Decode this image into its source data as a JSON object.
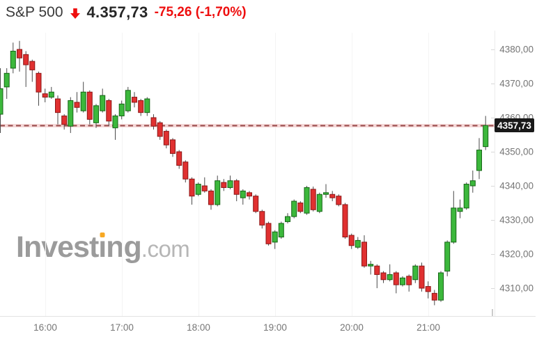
{
  "header": {
    "symbol": "S&P 500",
    "price": "4.357,73",
    "change": "-75,26 (-1,70%)",
    "direction_icon": "down-arrow",
    "change_color": "#ee0e0e"
  },
  "watermark": {
    "brand_main": "Invest",
    "brand_i": "ı",
    "brand_tail": "ng",
    "suffix": ".com"
  },
  "chart_data": {
    "type": "candlestick",
    "title": "S&P 500 intraday candlestick chart",
    "candle_interval_minutes": 5,
    "x_tick_labels": [
      "16:00",
      "17:00",
      "18:00",
      "19:00",
      "20:00",
      "21:00"
    ],
    "y_tick_labels": [
      "4380,00",
      "4370,00",
      "4360,00",
      "4350,00",
      "4340,00",
      "4330,00",
      "4320,00",
      "4310,00"
    ],
    "y_tick_values": [
      4380,
      4370,
      4360,
      4350,
      4340,
      4330,
      4320,
      4310
    ],
    "ylim": [
      4301.5,
      4383.5
    ],
    "grid": "faint-vertical-hour-lines",
    "legend_position": "none",
    "last_price": 4357.73,
    "last_price_label": "4357,73",
    "price_line_style": "dashed",
    "colors": {
      "up_fill": "#3cb83c",
      "up_border": "#156515",
      "down_fill": "#e03030",
      "down_border": "#8c1616",
      "wick": "#4a4a4a",
      "price_line": "#954646",
      "price_line_halo": "#f5d7d7",
      "price_label_bg": "#191919",
      "price_label_text": "#ffffff",
      "axis_text": "#757575",
      "gridline": "#f4f4f4",
      "baseline": "#e2e2e2"
    },
    "candles_format": [
      "open",
      "high",
      "low",
      "close"
    ],
    "candles": [
      [
        4361.0,
        4374.5,
        4355.5,
        4368.5
      ],
      [
        4369.0,
        4374.5,
        4365.5,
        4373.0
      ],
      [
        4374.5,
        4382.0,
        4373.0,
        4379.5
      ],
      [
        4380.0,
        4382.5,
        4373.5,
        4377.5
      ],
      [
        4378.5,
        4379.5,
        4369.0,
        4375.5
      ],
      [
        4376.5,
        4377.0,
        4370.5,
        4374.0
      ],
      [
        4373.0,
        4373.5,
        4363.5,
        4367.5
      ],
      [
        4367.0,
        4368.5,
        4364.5,
        4366.0
      ],
      [
        4366.0,
        4369.0,
        4365.5,
        4367.5
      ],
      [
        4365.5,
        4366.5,
        4358.0,
        4361.5
      ],
      [
        4360.5,
        4361.0,
        4356.5,
        4358.0
      ],
      [
        4357.5,
        4366.0,
        4355.5,
        4365.0
      ],
      [
        4364.5,
        4367.5,
        4361.5,
        4363.0
      ],
      [
        4362.0,
        4370.5,
        4361.5,
        4367.5
      ],
      [
        4367.5,
        4368.0,
        4358.0,
        4359.5
      ],
      [
        4358.5,
        4364.0,
        4357.0,
        4363.5
      ],
      [
        4362.0,
        4368.5,
        4361.5,
        4366.5
      ],
      [
        4365.0,
        4365.5,
        4357.5,
        4359.0
      ],
      [
        4357.0,
        4361.0,
        4353.5,
        4360.5
      ],
      [
        4360.5,
        4365.0,
        4359.5,
        4364.0
      ],
      [
        4362.0,
        4369.0,
        4361.5,
        4368.0
      ],
      [
        4366.0,
        4367.5,
        4363.0,
        4364.5
      ],
      [
        4365.0,
        4365.5,
        4360.5,
        4361.5
      ],
      [
        4361.5,
        4366.0,
        4360.5,
        4365.5
      ],
      [
        4360.0,
        4361.0,
        4356.5,
        4357.5
      ],
      [
        4358.5,
        4359.0,
        4353.5,
        4354.5
      ],
      [
        4356.0,
        4356.5,
        4351.0,
        4352.0
      ],
      [
        4353.5,
        4354.0,
        4348.5,
        4349.5
      ],
      [
        4350.0,
        4350.5,
        4345.0,
        4346.0
      ],
      [
        4347.0,
        4347.5,
        4341.0,
        4342.0
      ],
      [
        4342.0,
        4342.5,
        4334.5,
        4337.0
      ],
      [
        4337.5,
        4341.0,
        4337.0,
        4340.5
      ],
      [
        4340.0,
        4342.5,
        4338.0,
        4338.5
      ],
      [
        4338.5,
        4339.0,
        4333.0,
        4334.5
      ],
      [
        4334.5,
        4343.0,
        4334.0,
        4341.5
      ],
      [
        4341.0,
        4342.0,
        4338.5,
        4339.5
      ],
      [
        4339.5,
        4343.0,
        4339.0,
        4341.5
      ],
      [
        4341.5,
        4342.0,
        4335.5,
        4337.5
      ],
      [
        4336.5,
        4339.0,
        4334.5,
        4338.5
      ],
      [
        4338.0,
        4338.5,
        4336.0,
        4337.0
      ],
      [
        4337.0,
        4337.5,
        4332.0,
        4332.5
      ],
      [
        4332.5,
        4333.0,
        4327.5,
        4328.5
      ],
      [
        4329.0,
        4329.5,
        4322.5,
        4323.0
      ],
      [
        4323.5,
        4327.0,
        4321.5,
        4326.5
      ],
      [
        4325.0,
        4329.5,
        4324.5,
        4329.0
      ],
      [
        4329.5,
        4332.0,
        4329.0,
        4331.0
      ],
      [
        4331.0,
        4336.0,
        4330.5,
        4335.5
      ],
      [
        4335.0,
        4335.5,
        4332.0,
        4332.5
      ],
      [
        4332.0,
        4340.0,
        4331.5,
        4339.5
      ],
      [
        4339.0,
        4339.8,
        4332.5,
        4333.0
      ],
      [
        4332.5,
        4338.0,
        4332.0,
        4337.5
      ],
      [
        4337.5,
        4340.5,
        4336.5,
        4338.0
      ],
      [
        4337.5,
        4338.5,
        4335.5,
        4336.5
      ],
      [
        4337.0,
        4337.5,
        4334.0,
        4334.5
      ],
      [
        4334.5,
        4335.0,
        4324.5,
        4325.0
      ],
      [
        4325.5,
        4326.0,
        4321.5,
        4322.5
      ],
      [
        4322.0,
        4325.0,
        4321.5,
        4324.0
      ],
      [
        4323.5,
        4325.5,
        4316.0,
        4316.5
      ],
      [
        4316.5,
        4318.0,
        4314.0,
        4317.0
      ],
      [
        4316.5,
        4317.0,
        4310.0,
        4314.0
      ],
      [
        4314.5,
        4315.0,
        4311.5,
        4312.5
      ],
      [
        4312.5,
        4317.0,
        4312.0,
        4314.0
      ],
      [
        4314.5,
        4315.0,
        4308.5,
        4311.0
      ],
      [
        4311.0,
        4313.5,
        4310.5,
        4313.0
      ],
      [
        4313.5,
        4314.0,
        4309.0,
        4311.0
      ],
      [
        4312.5,
        4317.0,
        4311.5,
        4316.5
      ],
      [
        4316.5,
        4317.5,
        4309.0,
        4310.0
      ],
      [
        4310.5,
        4312.0,
        4307.0,
        4309.0
      ],
      [
        4308.5,
        4309.5,
        4305.0,
        4306.5
      ],
      [
        4306.5,
        4315.0,
        4306.0,
        4314.5
      ],
      [
        4315.0,
        4324.0,
        4313.5,
        4323.5
      ],
      [
        4323.5,
        4338.5,
        4323.0,
        4333.5
      ],
      [
        4332.5,
        4336.0,
        4330.5,
        4333.5
      ],
      [
        4333.5,
        4341.0,
        4333.0,
        4340.5
      ],
      [
        4340.0,
        4344.5,
        4338.0,
        4341.5
      ],
      [
        4344.5,
        4354.0,
        4342.0,
        4350.5
      ],
      [
        4351.5,
        4360.5,
        4350.5,
        4357.7
      ]
    ]
  }
}
